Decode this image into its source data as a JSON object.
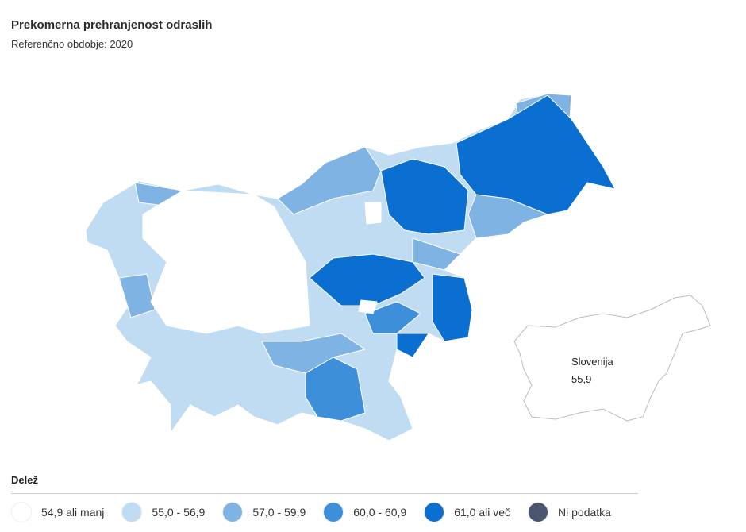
{
  "header": {
    "title": "Prekomerna prehranjenost odraslih",
    "subtitle": "Referenčno obdobje: 2020"
  },
  "inset": {
    "name": "Slovenija",
    "value": "55,9"
  },
  "legend": {
    "title": "Delež",
    "items": [
      {
        "label": "54,9 ali manj",
        "color": "#ffffff"
      },
      {
        "label": "55,0 - 56,9",
        "color": "#c0dcf2"
      },
      {
        "label": "57,0 - 59,9",
        "color": "#7fb3e3"
      },
      {
        "label": "60,0 - 60,9",
        "color": "#3d8fd9"
      },
      {
        "label": "61,0 ali več",
        "color": "#0a6fd0"
      },
      {
        "label": "Ni podatka",
        "color": "#4a5570"
      }
    ]
  }
}
